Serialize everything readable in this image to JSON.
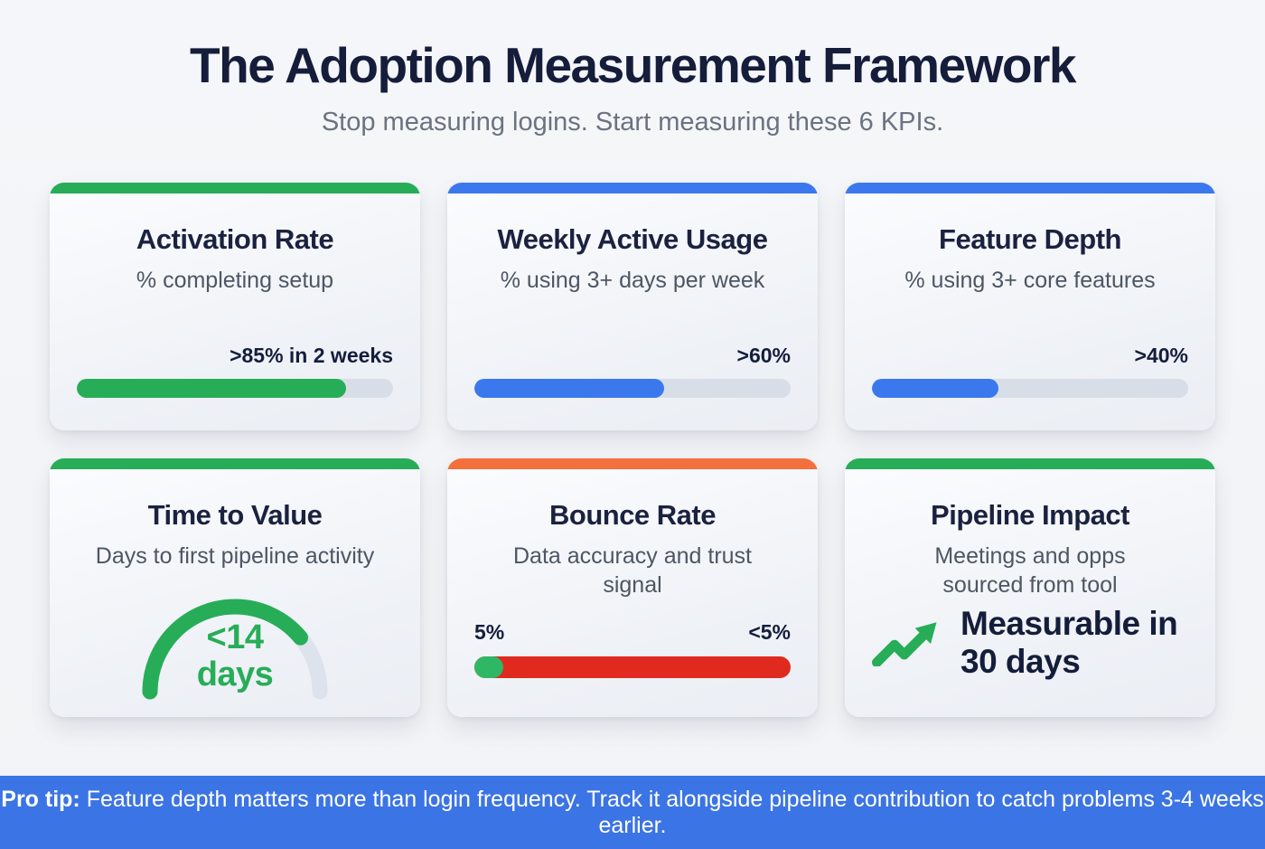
{
  "header": {
    "title": "The Adoption Measurement Framework",
    "subtitle": "Stop measuring logins. Start measuring these 6 KPIs."
  },
  "colors": {
    "green": "#27ad57",
    "bounce_green": "#2eb865",
    "blue": "#3b78ee",
    "orange": "#f3703d",
    "red": "#e0291f",
    "track_gray": "#d8dee7",
    "gauge_track": "#dde3ec",
    "footer_blue": "#3b74e4",
    "navy": "#151d3b"
  },
  "cards": [
    {
      "title": "Activation Rate",
      "subtitle": "% completing setup",
      "target_label": ">85% in 2 weeks",
      "fill_percent": 85,
      "accent_color": "#27ad57",
      "bar_color": "#27ad57"
    },
    {
      "title": "Weekly Active Usage",
      "subtitle": "% using 3+ days per week",
      "target_label": ">60%",
      "fill_percent": 60,
      "accent_color": "#3b78ee",
      "bar_color": "#3b78ee"
    },
    {
      "title": "Feature Depth",
      "subtitle": "% using 3+ core features",
      "target_label": ">40%",
      "fill_percent": 40,
      "accent_color": "#3b78ee",
      "bar_color": "#3b78ee"
    },
    {
      "title": "Time to Value",
      "subtitle": "Days to first pipeline activity",
      "accent_color": "#27ad57",
      "gauge": {
        "value_line1": "<14",
        "value_line2": "days",
        "percent": 78,
        "color": "#27ad57"
      }
    },
    {
      "title": "Bounce Rate",
      "subtitle": "Data accuracy and trust signal",
      "left_label": "5%",
      "right_label": "<5%",
      "green_percent": 9,
      "accent_color": "#f3703d",
      "bar_color": "#e0291f",
      "green_color": "#2eb865"
    },
    {
      "title": "Pipeline Impact",
      "subtitle": "Meetings and opps sourced from tool",
      "highlight": "Measurable in 30 days",
      "accent_color": "#27ad57",
      "icon_color": "#27ad57"
    }
  ],
  "footer": {
    "prefix": "Pro tip:",
    "text": "Feature depth matters more than login frequency. Track it alongside pipeline contribution to catch problems 3-4 weeks earlier."
  }
}
